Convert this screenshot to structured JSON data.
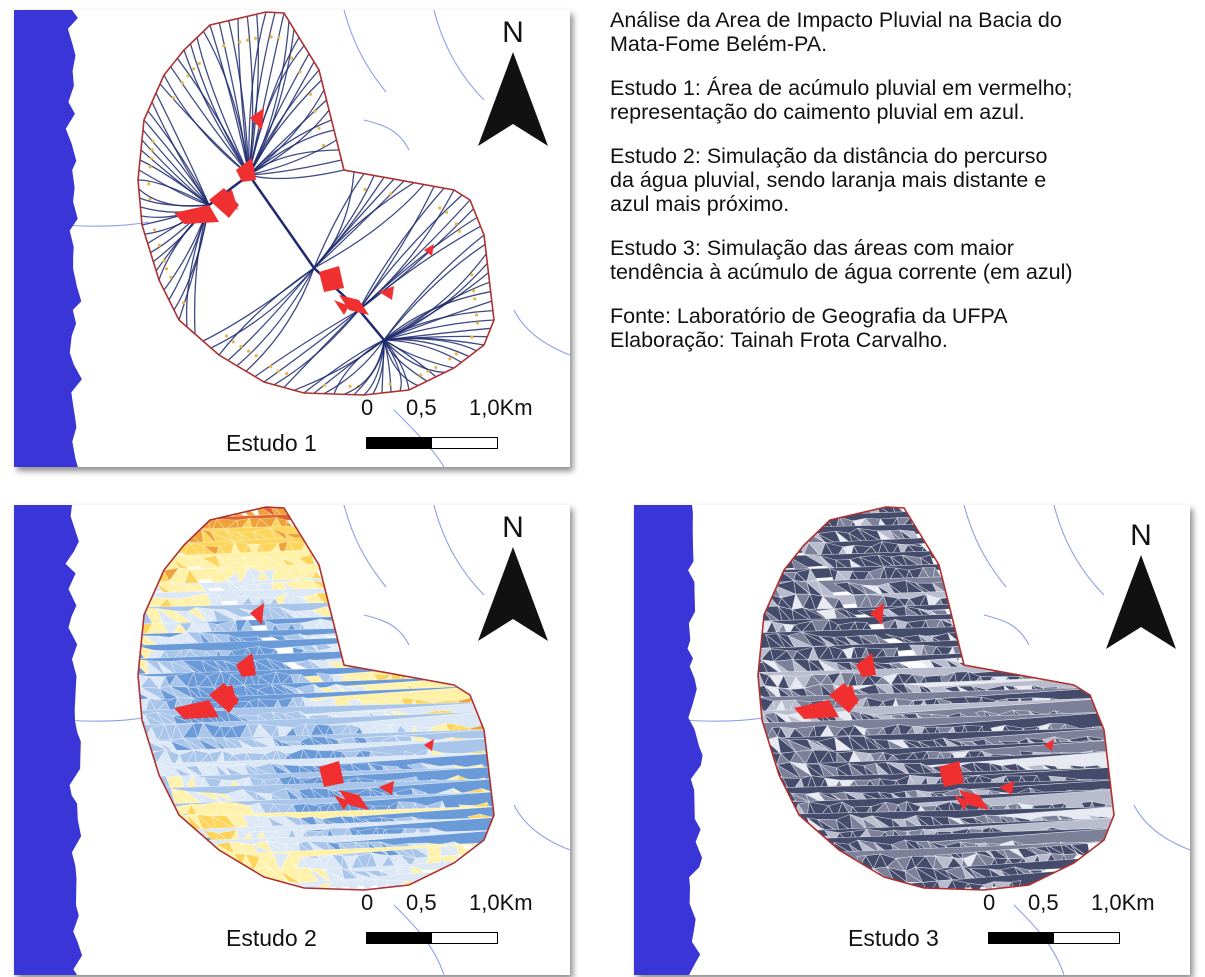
{
  "description": {
    "title": "Análise da Area de Impacto Pluvial na Bacia do\nMata-Fome Belém-PA.",
    "study1": "Estudo 1: Área de acúmulo pluvial em vermelho;\nrepresentação do caimento pluvial em azul.",
    "study2": "Estudo 2: Simulação da distância do percurso\nda água pluvial, sendo laranja mais distante e\nazul mais próximo.",
    "study3": "Estudo 3: Simulação das áreas com maior\ntendência à acúmulo de água corrente (em azul)",
    "source": "Fonte: Laboratório de Geografia da UFPA\nElaboração: Tainah Frota Carvalho."
  },
  "maps": [
    {
      "id": "estudo-1",
      "label": "Estudo 1",
      "north": "N",
      "scale_ticks": [
        "0",
        "0,5",
        "1,0Km"
      ]
    },
    {
      "id": "estudo-2",
      "label": "Estudo 2",
      "north": "N",
      "scale_ticks": [
        "0",
        "0,5",
        "1,0Km"
      ]
    },
    {
      "id": "estudo-3",
      "label": "Estudo 3",
      "north": "N",
      "scale_ticks": [
        "0",
        "0,5",
        "1,0Km"
      ]
    }
  ],
  "colors": {
    "water": "#3a35d6",
    "river": "#8f9fe8",
    "accumulation": "#f03030",
    "flow_lines": "#1f2a6e",
    "basin_outline": "#b03030",
    "near": "#6a9ad8",
    "far": "#e0642a",
    "mesh_dark": "#454b6a",
    "mesh_light": "#d8dbe8"
  }
}
